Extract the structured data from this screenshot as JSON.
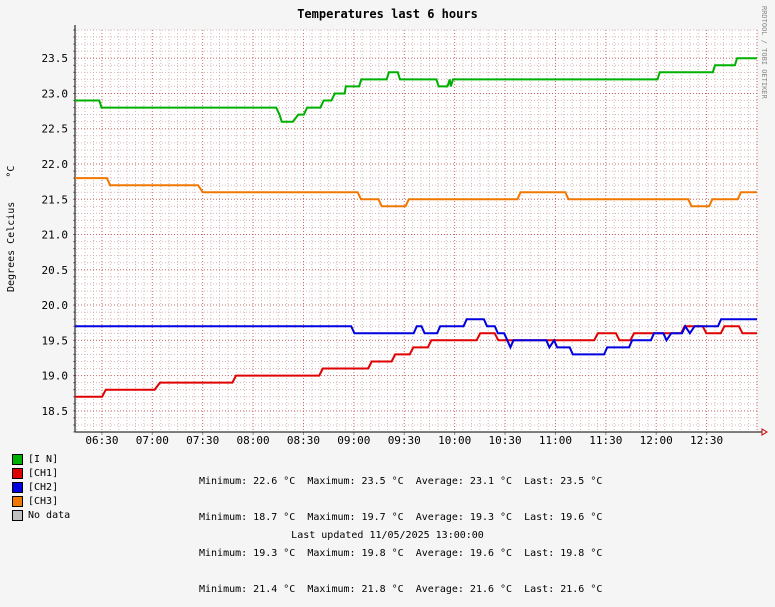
{
  "chart_data": {
    "type": "line",
    "title": "Temperatures last 6 hours",
    "ylabel": "Degrees Celcius    °C",
    "credit": "RRDTOOL / TOBI OETIKER",
    "ylim": [
      18.2,
      23.9
    ],
    "xlim_hours": [
      6.233,
      13.0
    ],
    "grid": true,
    "x_tick_labels": [
      {
        "h": 6.5,
        "label": "06:30"
      },
      {
        "h": 7.0,
        "label": "07:00"
      },
      {
        "h": 7.5,
        "label": "07:30"
      },
      {
        "h": 8.0,
        "label": "08:00"
      },
      {
        "h": 8.5,
        "label": "08:30"
      },
      {
        "h": 9.0,
        "label": "09:00"
      },
      {
        "h": 9.5,
        "label": "09:30"
      },
      {
        "h": 10.0,
        "label": "10:00"
      },
      {
        "h": 10.5,
        "label": "10:30"
      },
      {
        "h": 11.0,
        "label": "11:00"
      },
      {
        "h": 11.5,
        "label": "11:30"
      },
      {
        "h": 12.0,
        "label": "12:00"
      },
      {
        "h": 12.5,
        "label": "12:30"
      }
    ],
    "y_tick_labels": [
      "18.5",
      "19.0",
      "19.5",
      "20.0",
      "20.5",
      "21.0",
      "21.5",
      "22.0",
      "22.5",
      "23.0",
      "23.5"
    ],
    "series": [
      {
        "name": "[I N]",
        "color": "#00b000",
        "points": [
          [
            6.23,
            22.9
          ],
          [
            6.45,
            22.9
          ],
          [
            6.47,
            22.8
          ],
          [
            7.0,
            22.8
          ],
          [
            8.0,
            22.8
          ],
          [
            8.05,
            22.8
          ],
          [
            8.08,
            22.7
          ],
          [
            8.1,
            22.6
          ],
          [
            8.2,
            22.6
          ],
          [
            8.25,
            22.7
          ],
          [
            8.3,
            22.7
          ],
          [
            8.33,
            22.8
          ],
          [
            8.45,
            22.8
          ],
          [
            8.48,
            22.9
          ],
          [
            8.55,
            22.9
          ],
          [
            8.58,
            23.0
          ],
          [
            8.67,
            23.0
          ],
          [
            8.68,
            23.1
          ],
          [
            8.8,
            23.1
          ],
          [
            8.82,
            23.2
          ],
          [
            9.05,
            23.2
          ],
          [
            9.07,
            23.3
          ],
          [
            9.15,
            23.3
          ],
          [
            9.17,
            23.2
          ],
          [
            9.5,
            23.2
          ],
          [
            9.52,
            23.1
          ],
          [
            9.6,
            23.1
          ],
          [
            9.62,
            23.2
          ],
          [
            9.63,
            23.1
          ],
          [
            9.65,
            23.2
          ],
          [
            10.5,
            23.2
          ],
          [
            11.0,
            23.2
          ],
          [
            11.5,
            23.2
          ],
          [
            11.52,
            23.3
          ],
          [
            12.0,
            23.3
          ],
          [
            12.02,
            23.4
          ],
          [
            12.2,
            23.4
          ],
          [
            12.22,
            23.5
          ],
          [
            12.4,
            23.5
          ]
        ]
      },
      {
        "name": "[CH1]",
        "color": "#e00000",
        "points": [
          [
            6.23,
            18.7
          ],
          [
            6.38,
            18.7
          ],
          [
            6.4,
            18.8
          ],
          [
            6.67,
            18.8
          ],
          [
            6.7,
            18.9
          ],
          [
            7.0,
            18.9
          ],
          [
            7.1,
            18.9
          ],
          [
            7.12,
            19.0
          ],
          [
            7.5,
            19.0
          ],
          [
            7.58,
            19.0
          ],
          [
            7.6,
            19.1
          ],
          [
            7.85,
            19.1
          ],
          [
            7.87,
            19.2
          ],
          [
            7.98,
            19.2
          ],
          [
            8.0,
            19.3
          ],
          [
            8.08,
            19.3
          ],
          [
            8.1,
            19.4
          ],
          [
            8.18,
            19.4
          ],
          [
            8.2,
            19.5
          ],
          [
            8.45,
            19.5
          ],
          [
            8.47,
            19.6
          ],
          [
            8.55,
            19.6
          ],
          [
            8.57,
            19.5
          ],
          [
            9.0,
            19.5
          ],
          [
            9.1,
            19.5
          ],
          [
            9.12,
            19.6
          ],
          [
            9.22,
            19.6
          ],
          [
            9.24,
            19.5
          ],
          [
            9.3,
            19.5
          ],
          [
            9.32,
            19.6
          ],
          [
            9.58,
            19.6
          ],
          [
            9.6,
            19.7
          ],
          [
            9.7,
            19.7
          ],
          [
            9.72,
            19.6
          ],
          [
            9.8,
            19.6
          ],
          [
            9.82,
            19.7
          ],
          [
            9.9,
            19.7
          ],
          [
            9.92,
            19.6
          ],
          [
            10.0,
            19.6
          ]
        ]
      },
      {
        "name": "[CH2]",
        "color": "#0000e0",
        "points": [
          [
            6.23,
            19.7
          ],
          [
            7.5,
            19.7
          ],
          [
            8.0,
            19.7
          ],
          [
            8.02,
            19.6
          ],
          [
            8.4,
            19.6
          ],
          [
            8.42,
            19.7
          ],
          [
            8.45,
            19.7
          ],
          [
            8.47,
            19.6
          ],
          [
            8.55,
            19.6
          ],
          [
            8.57,
            19.7
          ],
          [
            8.72,
            19.7
          ],
          [
            8.74,
            19.8
          ],
          [
            8.85,
            19.8
          ],
          [
            8.87,
            19.7
          ],
          [
            8.92,
            19.7
          ],
          [
            8.94,
            19.6
          ],
          [
            8.98,
            19.6
          ],
          [
            9.0,
            19.5
          ],
          [
            9.02,
            19.4
          ],
          [
            9.04,
            19.5
          ],
          [
            9.25,
            19.5
          ],
          [
            9.27,
            19.4
          ],
          [
            9.3,
            19.5
          ],
          [
            9.32,
            19.4
          ],
          [
            9.4,
            19.4
          ],
          [
            9.42,
            19.3
          ],
          [
            9.62,
            19.3
          ],
          [
            9.64,
            19.4
          ],
          [
            9.78,
            19.4
          ],
          [
            9.8,
            19.5
          ],
          [
            9.92,
            19.5
          ],
          [
            9.94,
            19.6
          ],
          [
            10.0,
            19.6
          ],
          [
            10.02,
            19.5
          ],
          [
            10.05,
            19.6
          ],
          [
            10.12,
            19.6
          ],
          [
            10.14,
            19.7
          ],
          [
            10.17,
            19.6
          ],
          [
            10.2,
            19.7
          ],
          [
            10.35,
            19.7
          ],
          [
            10.37,
            19.8
          ],
          [
            10.6,
            19.8
          ]
        ]
      },
      {
        "name": "[CH3]",
        "color": "#f07800",
        "points": [
          [
            6.23,
            21.8
          ],
          [
            6.43,
            21.8
          ],
          [
            6.45,
            21.7
          ],
          [
            7.0,
            21.7
          ],
          [
            7.03,
            21.6
          ],
          [
            8.0,
            21.6
          ],
          [
            8.02,
            21.5
          ],
          [
            8.13,
            21.5
          ],
          [
            8.15,
            21.4
          ],
          [
            8.3,
            21.4
          ],
          [
            8.32,
            21.5
          ],
          [
            9.0,
            21.5
          ],
          [
            9.02,
            21.6
          ],
          [
            9.3,
            21.6
          ],
          [
            9.32,
            21.5
          ],
          [
            10.0,
            21.5
          ],
          [
            10.07,
            21.5
          ],
          [
            10.09,
            21.4
          ],
          [
            10.2,
            21.4
          ],
          [
            10.22,
            21.5
          ],
          [
            10.38,
            21.5
          ],
          [
            10.4,
            21.6
          ],
          [
            10.5,
            21.6
          ]
        ]
      }
    ]
  },
  "title": "Temperatures last 6 hours",
  "ylabel": "Degrees Celcius    °C",
  "credit": "RRDTOOL / TOBI OETIKER",
  "legend": [
    {
      "label": "[I N]",
      "color": "#00b000",
      "stats": "Minimum: 22.6 °C  Maximum: 23.5 °C  Average: 23.1 °C  Last: 23.5 °C"
    },
    {
      "label": "[CH1]",
      "color": "#e00000",
      "stats": "Minimum: 18.7 °C  Maximum: 19.7 °C  Average: 19.3 °C  Last: 19.6 °C"
    },
    {
      "label": "[CH2]",
      "color": "#0000e0",
      "stats": "Minimum: 19.3 °C  Maximum: 19.8 °C  Average: 19.6 °C  Last: 19.8 °C"
    },
    {
      "label": "[CH3]",
      "color": "#f07800",
      "stats": "Minimum: 21.4 °C  Maximum: 21.8 °C  Average: 21.6 °C  Last: 21.6 °C"
    },
    {
      "label": "No data",
      "color": "#c0c0c0",
      "stats": ""
    }
  ],
  "updated": "Last updated 11/05/2025 13:00:00"
}
